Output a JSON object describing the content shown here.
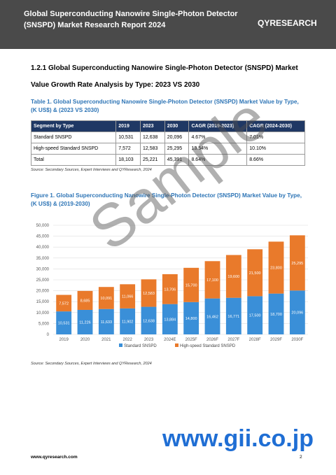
{
  "header": {
    "title": "Global Superconducting Nanowire Single-Photon Detector (SNSPD) Market Research Report 2024",
    "logo": "QYRESEARCH"
  },
  "section": {
    "heading": "1.2.1 Global Superconducting Nanowire Single-Photon Detector (SNSPD) Market Value Growth Rate Analysis by Type: 2023 VS 2030"
  },
  "table": {
    "caption": "Table 1.  Global Superconducting Nanowire Single-Photon Detector (SNSPD) Market Value by Type, (K US$) & (2023 VS 2030)",
    "header": [
      "Segment by Type",
      "2019",
      "2023",
      "2030",
      "CAGR (2019-2023)",
      "CAGR (2024-2030)"
    ],
    "rows": [
      [
        "Standard SNSPD",
        "10,531",
        "12,638",
        "20,096",
        "4.67%",
        "7.01%"
      ],
      [
        "High-speed Standard SNSPD",
        "7,572",
        "12,583",
        "25,295",
        "13.54%",
        "10.10%"
      ],
      [
        "Total",
        "18,103",
        "25,221",
        "45,391",
        "8.64%",
        "8.66%"
      ]
    ],
    "source": "Source: Secondary Sources, Expert Interviews and QYResearch, 2024"
  },
  "figure": {
    "caption": "Figure 1.  Global Superconducting Nanowire Single-Photon Detector (SNSPD) Market Value by Type, (K US$) & (2019-2030)",
    "source": "Source: Secondary Sources, Expert Interviews and QYResearch, 2024"
  },
  "chart_data": {
    "type": "stacked-bar",
    "categories": [
      "2019",
      "2020",
      "2021",
      "2022",
      "2023",
      "2024E",
      "2025F",
      "2026F",
      "2027F",
      "2028F",
      "2029F",
      "2030F"
    ],
    "series": [
      {
        "name": "Standard SNSPD",
        "color": "#3a8fd8",
        "values": [
          10531,
          11226,
          11633,
          11902,
          12638,
          13884,
          14800,
          16462,
          16771,
          17500,
          18700,
          20096
        ],
        "value_labels": [
          "10,531",
          "11,226",
          "11,633",
          "11,902",
          "12,638",
          "13,884",
          "14,800",
          "16,462",
          "16,771",
          "17,500",
          "18,700",
          "20,096"
        ]
      },
      {
        "name": "High-speed Standard SNSPD",
        "color": "#e97a2b",
        "values": [
          7572,
          8685,
          10091,
          11066,
          12583,
          13706,
          15700,
          17100,
          19600,
          21500,
          23800,
          25295
        ],
        "value_labels": [
          "7,572",
          "8,685",
          "10,091",
          "11,066",
          "12,583",
          "13,706",
          "15,700",
          "17,100",
          "19,600",
          "21,500",
          "23,800",
          "25,295"
        ]
      }
    ],
    "ylim": [
      0,
      50000
    ],
    "yticks": [
      0,
      {
        "value": 5000,
        "label": "5,000"
      },
      {
        "value": 10000,
        "label": "10,000"
      },
      {
        "value": 15000,
        "label": "15,000"
      },
      {
        "value": 20000,
        "label": "20,000"
      },
      {
        "value": 25000,
        "label": "25,000"
      },
      {
        "value": 30000,
        "label": "30,000"
      },
      {
        "value": 35000,
        "label": "35,000"
      },
      {
        "value": 40000,
        "label": "40,000"
      },
      {
        "value": 45000,
        "label": "45,000"
      },
      {
        "value": 50000,
        "label": "50,000"
      }
    ],
    "grid": true
  },
  "watermark": "Sample",
  "site": "www.gii.co.jp",
  "footer": {
    "url": "www.qyresearch.com",
    "page": "2"
  }
}
